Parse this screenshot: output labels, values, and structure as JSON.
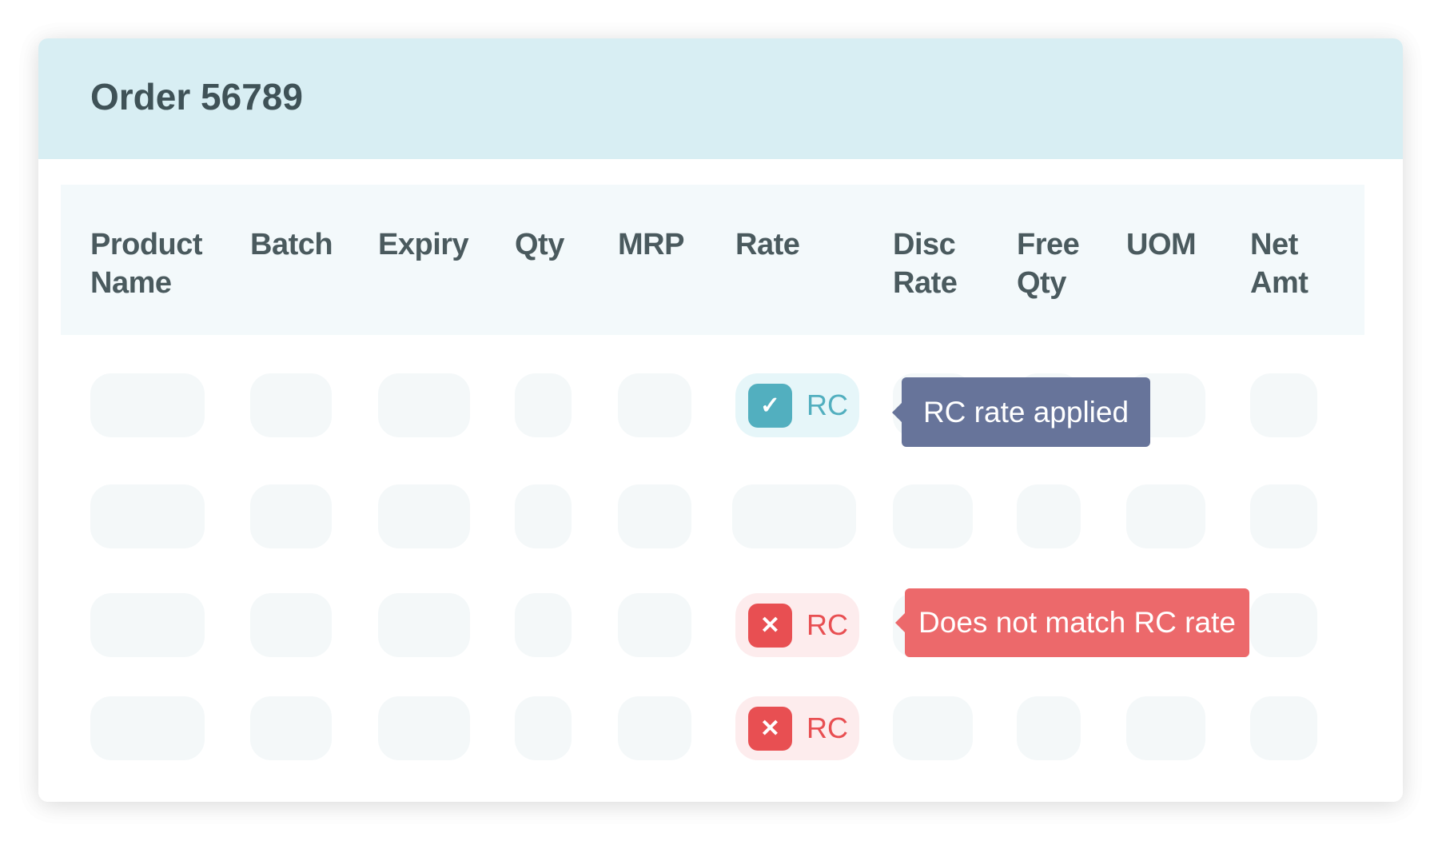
{
  "order": {
    "title": "Order 56789"
  },
  "columns": [
    {
      "line1": "Product",
      "line2": "Name"
    },
    {
      "line1": "Batch",
      "line2": ""
    },
    {
      "line1": "Expiry",
      "line2": ""
    },
    {
      "line1": "Qty",
      "line2": ""
    },
    {
      "line1": "MRP",
      "line2": ""
    },
    {
      "line1": "Rate",
      "line2": ""
    },
    {
      "line1": "Disc",
      "line2": "Rate"
    },
    {
      "line1": "Free",
      "line2": "Qty"
    },
    {
      "line1": "UOM",
      "line2": ""
    },
    {
      "line1": "Net",
      "line2": "Amt"
    }
  ],
  "rows": [
    {
      "rate_badge": {
        "status": "match",
        "icon": "check-icon",
        "label": "RC"
      },
      "tooltip": "RC rate applied"
    },
    {
      "rate_badge": null
    },
    {
      "rate_badge": {
        "status": "mismatch",
        "icon": "x-icon",
        "label": "RC"
      },
      "tooltip": "Does not match RC rate"
    },
    {
      "rate_badge": {
        "status": "mismatch",
        "icon": "x-icon",
        "label": "RC"
      }
    }
  ],
  "colors": {
    "header_bg": "#d8eef3",
    "match": "#52afbf",
    "mismatch": "#e84f52",
    "tooltip_info": "#67749a",
    "tooltip_error": "#ec6768"
  }
}
